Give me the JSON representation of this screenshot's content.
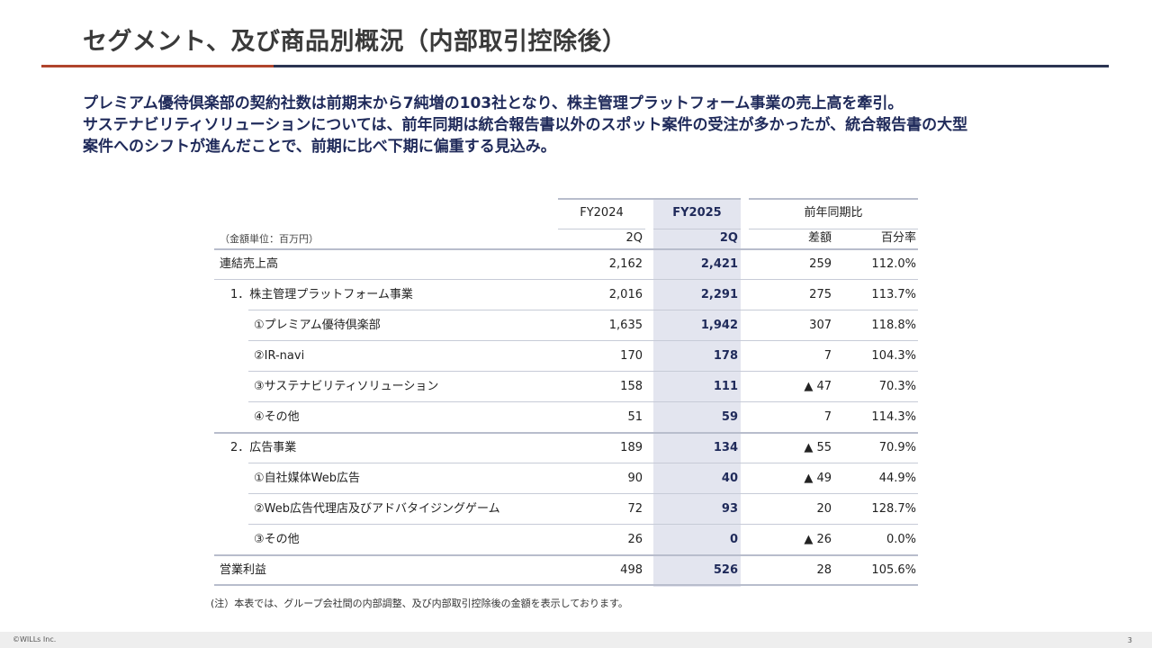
{
  "title": "セグメント、及び商品別概況（内部取引控除後）",
  "lead": [
    "プレミアム優待倶楽部の契約社数は前期末から7純増の103社となり、株主管理プラットフォーム事業の売上高を牽引。",
    "サステナビリティソリューションについては、前年同期は統合報告書以外のスポット案件の受注が多かったが、統合報告書の大型",
    "案件へのシフトが進んだことで、前期に比べ下期に偏重する見込み。"
  ],
  "table": {
    "unit": "（金額単位：百万円）",
    "fy2024": "FY2024",
    "fy2025": "FY2025",
    "yoy": "前年同期比",
    "q_prev": "2Q",
    "q_cur": "2Q",
    "diff": "差額",
    "pct": "百分率",
    "rows": [
      {
        "label": "連結売上高",
        "prev": "2,162",
        "cur": "2,421",
        "diff": "259",
        "pct": "112.0%"
      },
      {
        "label": "1．株主管理プラットフォーム事業",
        "prev": "2,016",
        "cur": "2,291",
        "diff": "275",
        "pct": "113.7%"
      },
      {
        "label": "①プレミアム優待倶楽部",
        "prev": "1,635",
        "cur": "1,942",
        "diff": "307",
        "pct": "118.8%"
      },
      {
        "label": "②IR-navi",
        "prev": "170",
        "cur": "178",
        "diff": "7",
        "pct": "104.3%"
      },
      {
        "label": "③サステナビリティソリューション",
        "prev": "158",
        "cur": "111",
        "diff": "▲ 47",
        "pct": "70.3%"
      },
      {
        "label": "④その他",
        "prev": "51",
        "cur": "59",
        "diff": "7",
        "pct": "114.3%"
      },
      {
        "label": "2．広告事業",
        "prev": "189",
        "cur": "134",
        "diff": "▲ 55",
        "pct": "70.9%"
      },
      {
        "label": "①自社媒体Web広告",
        "prev": "90",
        "cur": "40",
        "diff": "▲ 49",
        "pct": "44.9%"
      },
      {
        "label": "②Web広告代理店及びアドバタイジングゲーム",
        "prev": "72",
        "cur": "93",
        "diff": "20",
        "pct": "128.7%"
      },
      {
        "label": "③その他",
        "prev": "26",
        "cur": "0",
        "diff": "▲ 26",
        "pct": "0.0%"
      },
      {
        "label": "営業利益",
        "prev": "498",
        "cur": "526",
        "diff": "28",
        "pct": "105.6%"
      }
    ]
  },
  "note": "(注）本表では、グループ会社間の内部調整、及び内部取引控除後の金額を表示しております。",
  "footer": {
    "copyright": "©WILLs Inc.",
    "page": "3"
  }
}
